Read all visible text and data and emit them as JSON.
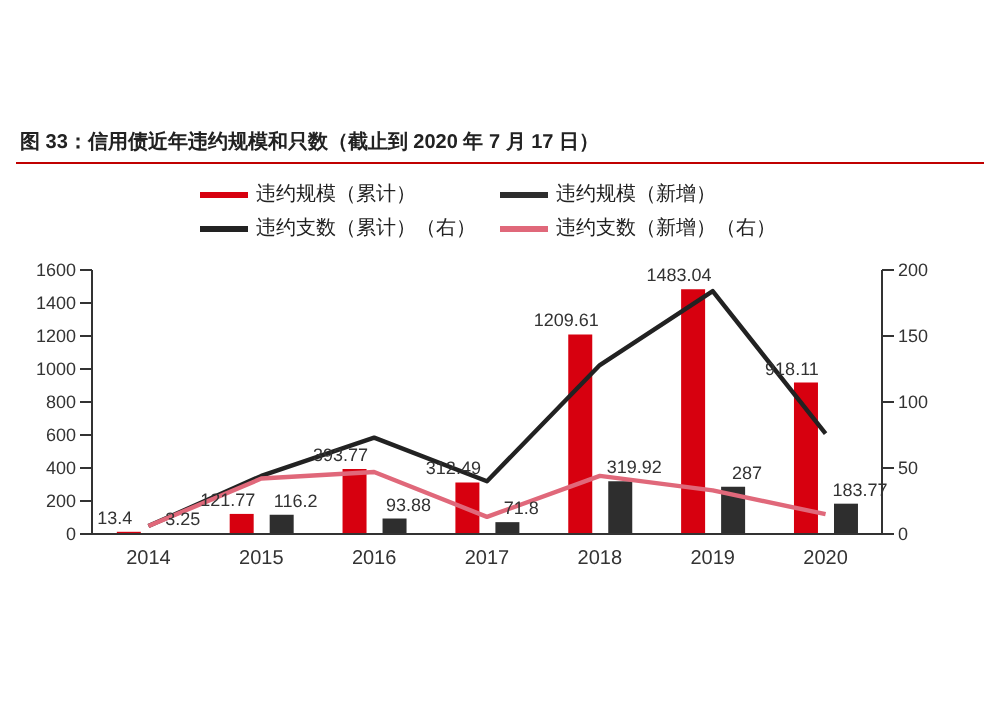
{
  "chart_data": {
    "type": "bar",
    "title": "图 33：信用债近年违约规模和只数（截止到 2020 年 7 月 17 日）",
    "categories": [
      "2014",
      "2015",
      "2016",
      "2017",
      "2018",
      "2019",
      "2020"
    ],
    "series": [
      {
        "name": "违约规模（累计）",
        "color": "#d7000f",
        "values": [
          13.4,
          121.77,
          393.77,
          312.49,
          1209.61,
          1483.04,
          918.11
        ],
        "value_labels": [
          "13.4",
          "121.77",
          "393.77",
          "312.49",
          "1209.61",
          "1483.04",
          "918.11"
        ]
      },
      {
        "name": "违约规模（新增）",
        "color": "#2e2e2e",
        "values": [
          3.25,
          116.2,
          93.88,
          71.8,
          319.92,
          287,
          183.77
        ],
        "value_labels": [
          "3.25",
          "116.2",
          "93.88",
          "71.8",
          "319.92",
          "287",
          "183.77"
        ]
      },
      {
        "name": "违约支数（累计）（右）",
        "type": "line",
        "axis": "y2",
        "color": "#222222",
        "values": [
          6,
          44,
          73,
          40,
          128,
          184,
          76
        ]
      },
      {
        "name": "违约支数（新增）（右）",
        "type": "line",
        "axis": "y2",
        "color": "#e0687a",
        "values": [
          6,
          42,
          47,
          13,
          44,
          33,
          15
        ]
      }
    ],
    "ylim": [
      0,
      1600
    ],
    "yticks": [
      0,
      200,
      400,
      600,
      800,
      1000,
      1200,
      1400,
      1600
    ],
    "y2lim": [
      0,
      200
    ],
    "y2ticks": [
      0,
      50,
      100,
      150,
      200
    ],
    "grid": false,
    "legend": "top",
    "marker": "none",
    "line_style": "solid"
  }
}
